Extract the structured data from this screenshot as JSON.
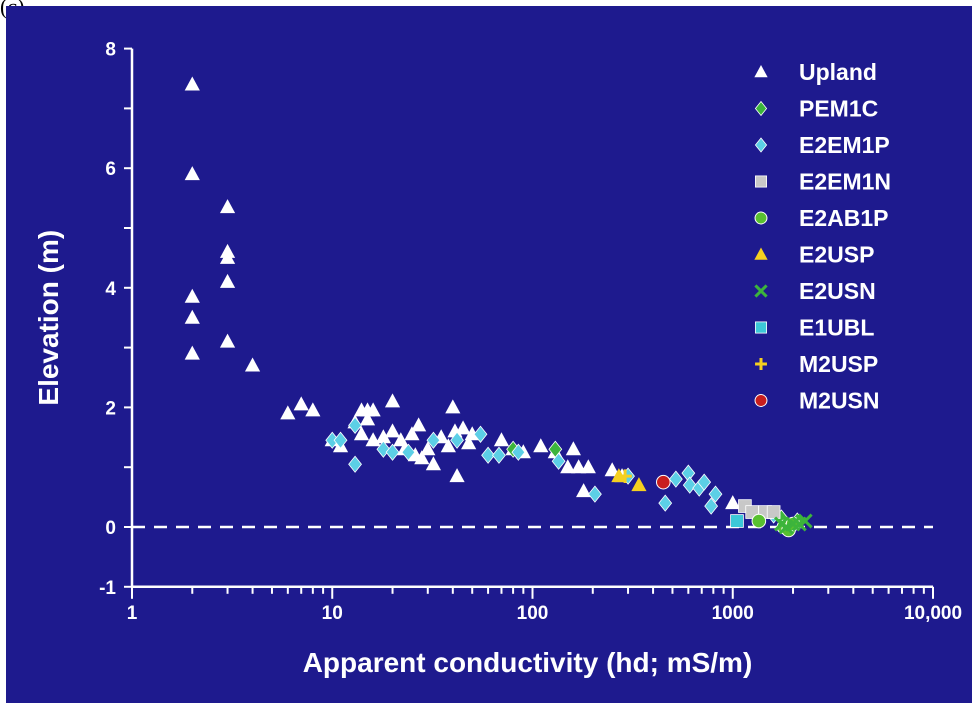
{
  "panel_label": "(c)",
  "colors": {
    "background": "#1e1a8e",
    "axes": "#ffffff",
    "zero_line": "#ffffff"
  },
  "chart_data": {
    "type": "scatter",
    "xlabel": "Apparent conductivity (hd; mS/m)",
    "ylabel": "Elevation (m)",
    "x_scale": "log",
    "xlim": [
      1,
      10000
    ],
    "ylim": [
      -1,
      8
    ],
    "x_ticks": [
      {
        "value": 1,
        "label": "1"
      },
      {
        "value": 10,
        "label": "10"
      },
      {
        "value": 100,
        "label": "100"
      },
      {
        "value": 1000,
        "label": "1000"
      },
      {
        "value": 10000,
        "label": "10,000"
      }
    ],
    "y_ticks": [
      {
        "value": -1,
        "label": "-1"
      },
      {
        "value": 0,
        "label": "0"
      },
      {
        "value": 2,
        "label": "2"
      },
      {
        "value": 4,
        "label": "4"
      },
      {
        "value": 6,
        "label": "6"
      },
      {
        "value": 8,
        "label": "8"
      }
    ],
    "reference_line": {
      "y": 0,
      "style": "dashed"
    },
    "legend_position": "top-right",
    "series": [
      {
        "name": "Upland",
        "marker": "triangle",
        "color": "#ffffff",
        "points": [
          [
            2,
            7.4
          ],
          [
            2,
            5.9
          ],
          [
            2,
            3.85
          ],
          [
            2,
            3.5
          ],
          [
            2,
            2.9
          ],
          [
            3,
            5.35
          ],
          [
            3,
            4.6
          ],
          [
            3,
            4.5
          ],
          [
            3,
            4.1
          ],
          [
            3,
            3.1
          ],
          [
            4,
            2.7
          ],
          [
            6,
            1.9
          ],
          [
            7,
            2.05
          ],
          [
            8,
            1.95
          ],
          [
            10,
            1.45
          ],
          [
            11,
            1.35
          ],
          [
            13,
            1.75
          ],
          [
            14,
            1.95
          ],
          [
            14,
            1.55
          ],
          [
            15,
            1.95
          ],
          [
            15,
            1.8
          ],
          [
            16,
            1.45
          ],
          [
            16,
            1.95
          ],
          [
            18,
            1.5
          ],
          [
            20,
            2.1
          ],
          [
            20,
            1.6
          ],
          [
            22,
            1.45
          ],
          [
            23,
            1.3
          ],
          [
            25,
            1.55
          ],
          [
            26,
            1.2
          ],
          [
            27,
            1.7
          ],
          [
            28,
            1.15
          ],
          [
            30,
            1.3
          ],
          [
            32,
            1.05
          ],
          [
            35,
            1.5
          ],
          [
            38,
            1.35
          ],
          [
            40,
            2.0
          ],
          [
            41,
            1.6
          ],
          [
            42,
            0.85
          ],
          [
            45,
            1.65
          ],
          [
            48,
            1.4
          ],
          [
            50,
            1.55
          ],
          [
            70,
            1.45
          ],
          [
            80,
            1.3
          ],
          [
            90,
            1.25
          ],
          [
            110,
            1.35
          ],
          [
            130,
            1.25
          ],
          [
            150,
            1.0
          ],
          [
            160,
            1.3
          ],
          [
            170,
            1.0
          ],
          [
            180,
            0.6
          ],
          [
            190,
            1.0
          ],
          [
            250,
            0.95
          ],
          [
            280,
            0.85
          ],
          [
            1000,
            0.4
          ]
        ]
      },
      {
        "name": "PEM1C",
        "marker": "diamond",
        "color": "#3cb43c",
        "points": [
          [
            80,
            1.3
          ],
          [
            130,
            1.3
          ],
          [
            1750,
            0.15
          ],
          [
            2100,
            0.1
          ]
        ]
      },
      {
        "name": "E2EM1P",
        "marker": "diamond",
        "color": "#5ccfe6",
        "points": [
          [
            10,
            1.45
          ],
          [
            11,
            1.45
          ],
          [
            13,
            1.05
          ],
          [
            13,
            1.7
          ],
          [
            18,
            1.3
          ],
          [
            20,
            1.25
          ],
          [
            24,
            1.25
          ],
          [
            32,
            1.45
          ],
          [
            42,
            1.45
          ],
          [
            55,
            1.55
          ],
          [
            60,
            1.2
          ],
          [
            68,
            1.2
          ],
          [
            85,
            1.25
          ],
          [
            135,
            1.1
          ],
          [
            205,
            0.55
          ],
          [
            300,
            0.85
          ],
          [
            460,
            0.4
          ],
          [
            520,
            0.8
          ],
          [
            600,
            0.9
          ],
          [
            610,
            0.7
          ],
          [
            680,
            0.65
          ],
          [
            720,
            0.75
          ],
          [
            780,
            0.35
          ],
          [
            820,
            0.55
          ],
          [
            1600,
            0.2
          ]
        ]
      },
      {
        "name": "E2EM1N",
        "marker": "square",
        "color": "#c8c8c8",
        "points": [
          [
            1150,
            0.35
          ],
          [
            1250,
            0.25
          ],
          [
            1450,
            0.25
          ],
          [
            1600,
            0.25
          ]
        ]
      },
      {
        "name": "E2AB1P",
        "marker": "circle",
        "color": "#58c030",
        "points": [
          [
            1350,
            0.1
          ],
          [
            1800,
            0.0
          ],
          [
            1900,
            -0.05
          ],
          [
            2000,
            0.05
          ]
        ]
      },
      {
        "name": "E2USP",
        "marker": "triangle",
        "color": "#f5d020",
        "points": [
          [
            270,
            0.85
          ],
          [
            340,
            0.7
          ]
        ]
      },
      {
        "name": "E2USN",
        "marker": "x",
        "color": "#3cb43c",
        "points": [
          [
            1750,
            0.05
          ],
          [
            1850,
            0.0
          ],
          [
            2000,
            0.05
          ],
          [
            2150,
            0.05
          ],
          [
            2300,
            0.1
          ]
        ]
      },
      {
        "name": "E1UBL",
        "marker": "square",
        "color": "#3cc8d8",
        "points": [
          [
            1050,
            0.1
          ]
        ]
      },
      {
        "name": "M2USP",
        "marker": "plus",
        "color": "#f5d020",
        "points": [
          [
            290,
            0.85
          ]
        ]
      },
      {
        "name": "M2USN",
        "marker": "circle",
        "color": "#c81e1e",
        "points": [
          [
            450,
            0.75
          ]
        ]
      }
    ]
  }
}
